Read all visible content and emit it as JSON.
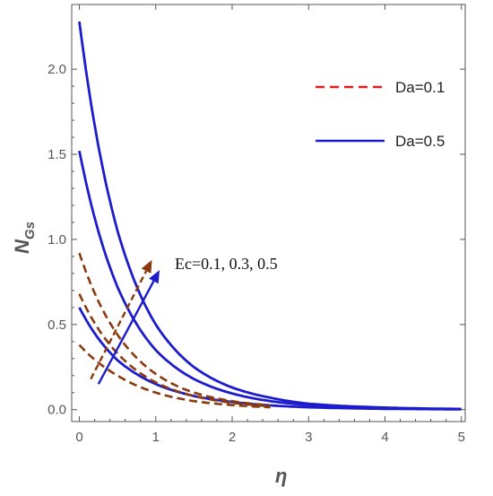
{
  "chart_data": {
    "type": "line",
    "xlabel": "η",
    "ylabel_main": "N",
    "ylabel_sub": "Gs",
    "xlim": [
      -0.1,
      5.05
    ],
    "ylim": [
      -0.07,
      2.38
    ],
    "xticks": [
      0,
      1,
      2,
      3,
      4,
      5
    ],
    "xtick_labels": [
      "0",
      "1",
      "2",
      "3",
      "4",
      "5"
    ],
    "yticks": [
      0.0,
      0.5,
      1.0,
      1.5,
      2.0
    ],
    "ytick_labels": [
      "0.0",
      "0.5",
      "1.0",
      "1.5",
      "2.0"
    ],
    "grid": false,
    "legend_position": "top-right",
    "legend": [
      {
        "label": "Da=0.1",
        "color": "#e02020",
        "style": "dashed"
      },
      {
        "label": "Da=0.5",
        "color": "#1c1ccc",
        "style": "solid"
      }
    ],
    "annotation": "Ec=0.1, 0.3, 0.5",
    "series": [
      {
        "group": "Da=0.5",
        "color": "#1c1ccc",
        "style": "solid",
        "x": [
          0,
          0.5,
          1,
          1.5,
          2,
          2.5,
          3,
          4,
          5
        ],
        "y": [
          2.28,
          1.05,
          0.5,
          0.25,
          0.13,
          0.07,
          0.035,
          0.012,
          0.004
        ]
      },
      {
        "group": "Da=0.5",
        "color": "#1c1ccc",
        "style": "solid",
        "x": [
          0,
          0.5,
          1,
          1.5,
          2,
          2.5,
          3,
          4,
          5
        ],
        "y": [
          1.52,
          0.72,
          0.35,
          0.18,
          0.095,
          0.05,
          0.027,
          0.01,
          0.003
        ]
      },
      {
        "group": "Da=0.5",
        "color": "#1c1ccc",
        "style": "solid",
        "x": [
          0,
          0.5,
          1,
          1.5,
          2,
          2.5,
          3,
          4,
          5
        ],
        "y": [
          0.6,
          0.29,
          0.15,
          0.08,
          0.045,
          0.025,
          0.014,
          0.005,
          0.002
        ]
      },
      {
        "group": "Da=0.1",
        "color": "#8b3a10",
        "style": "dashed",
        "x": [
          0,
          0.5,
          1,
          1.5,
          2,
          2.5
        ],
        "y": [
          0.92,
          0.44,
          0.21,
          0.1,
          0.05,
          0.025
        ]
      },
      {
        "group": "Da=0.1",
        "color": "#8b3a10",
        "style": "dashed",
        "x": [
          0,
          0.5,
          1,
          1.5,
          2,
          2.5
        ],
        "y": [
          0.68,
          0.33,
          0.16,
          0.08,
          0.04,
          0.02
        ]
      },
      {
        "group": "Da=0.1",
        "color": "#8b3a10",
        "style": "dashed",
        "x": [
          0,
          0.5,
          1,
          1.5,
          2,
          2.5
        ],
        "y": [
          0.38,
          0.2,
          0.1,
          0.05,
          0.027,
          0.014
        ]
      }
    ],
    "arrows": [
      {
        "color": "#8b3a10",
        "style": "dashed",
        "from": [
          0.15,
          0.18
        ],
        "to": [
          0.95,
          0.88
        ]
      },
      {
        "color": "#1c1ccc",
        "style": "solid",
        "from": [
          0.25,
          0.15
        ],
        "to": [
          1.05,
          0.82
        ]
      }
    ]
  }
}
